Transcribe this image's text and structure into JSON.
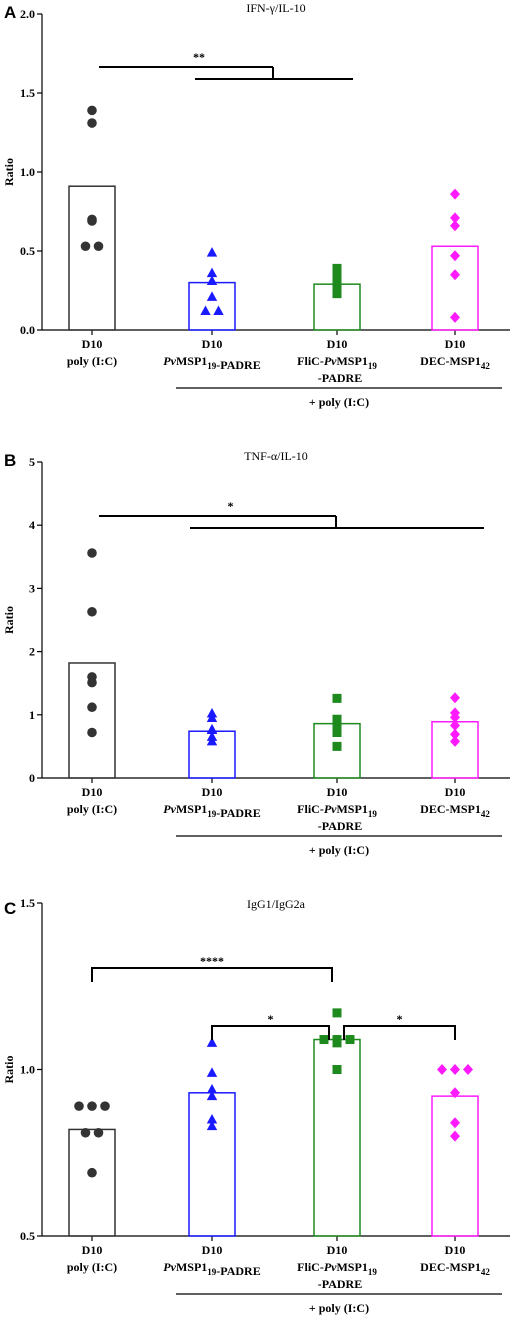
{
  "chart_data": [
    {
      "type": "bar",
      "panel": "A",
      "title": "IFN-γ/IL-10",
      "ylabel": "Ratio",
      "ylim": [
        0,
        2.0
      ],
      "yticks": [
        "0.0",
        "0.5",
        "1.0",
        "1.5",
        "2.0"
      ],
      "categories": [
        {
          "line1": "D10",
          "line2": "poly (I:C)"
        },
        {
          "line1": "D10",
          "line2": [
            {
              "t": "Pv",
              "i": true
            },
            {
              "t": "MSP1"
            },
            {
              "t": "19",
              "sub": true
            },
            {
              "t": "-PADRE"
            }
          ]
        },
        {
          "line1": "D10",
          "line2": [
            {
              "t": "FliC-"
            },
            {
              "t": "Pv",
              "i": true
            },
            {
              "t": "MSP1"
            },
            {
              "t": "19",
              "sub": true
            }
          ],
          "line3": "-PADRE"
        },
        {
          "line1": "D10",
          "line2": [
            {
              "t": "DEC-MSP1"
            },
            {
              "t": "42",
              "sub": true
            }
          ]
        }
      ],
      "group_label": "+ poly (I:C)",
      "colors": [
        "#333333",
        "#1a1aff",
        "#1e8a1e",
        "#ff1aff"
      ],
      "markers": [
        "circle",
        "triangle",
        "square",
        "diamond"
      ],
      "values": [
        0.91,
        0.3,
        0.29,
        0.53
      ],
      "points": [
        [
          1.39,
          1.31,
          0.7,
          0.69,
          0.53,
          0.53
        ],
        [
          0.49,
          0.36,
          0.31,
          0.21,
          0.12,
          0.12
        ],
        [
          0.39,
          0.38,
          0.33,
          0.32,
          0.26,
          0.23
        ],
        [
          0.86,
          0.71,
          0.66,
          0.47,
          0.35,
          0.08
        ]
      ],
      "significance": [
        {
          "label": "**",
          "from": [
            0
          ],
          "to": [
            1,
            2,
            3
          ]
        }
      ]
    },
    {
      "type": "bar",
      "panel": "B",
      "title": "TNF-α/IL-10",
      "ylabel": "Ratio",
      "ylim": [
        0,
        5
      ],
      "yticks": [
        "0",
        "1",
        "2",
        "3",
        "4",
        "5"
      ],
      "categories": [
        {
          "line1": "D10",
          "line2": "poly (I:C)"
        },
        {
          "line1": "D10",
          "line2": [
            {
              "t": "Pv",
              "i": true
            },
            {
              "t": "MSP1"
            },
            {
              "t": "19",
              "sub": true
            },
            {
              "t": "-PADRE"
            }
          ]
        },
        {
          "line1": "D10",
          "line2": [
            {
              "t": "FliC-"
            },
            {
              "t": "Pv",
              "i": true
            },
            {
              "t": "MSP1"
            },
            {
              "t": "19",
              "sub": true
            }
          ],
          "line3": "-PADRE"
        },
        {
          "line1": "D10",
          "line2": [
            {
              "t": "DEC-MSP1"
            },
            {
              "t": "42",
              "sub": true
            }
          ]
        }
      ],
      "group_label": "+ poly (I:C)",
      "colors": [
        "#333333",
        "#1a1aff",
        "#1e8a1e",
        "#ff1aff"
      ],
      "markers": [
        "circle",
        "triangle",
        "square",
        "diamond"
      ],
      "values": [
        1.82,
        0.74,
        0.86,
        0.89
      ],
      "points": [
        [
          3.56,
          2.63,
          1.6,
          1.51,
          1.12,
          0.72
        ],
        [
          1.02,
          0.95,
          0.77,
          0.76,
          0.65,
          0.58
        ],
        [
          1.26,
          0.93,
          0.92,
          0.83,
          0.72,
          0.5
        ],
        [
          1.27,
          1.03,
          0.96,
          0.83,
          0.69,
          0.58
        ]
      ],
      "significance": [
        {
          "label": "*",
          "from": [
            0
          ],
          "to": [
            1,
            2,
            3
          ]
        }
      ]
    },
    {
      "type": "bar",
      "panel": "C",
      "title": "IgG1/IgG2a",
      "ylabel": "Ratio",
      "ylim": [
        0.5,
        1.5
      ],
      "yticks": [
        "0.5",
        "1.0",
        "1.5"
      ],
      "categories": [
        {
          "line1": "D10",
          "line2": "poly (I:C)"
        },
        {
          "line1": "D10",
          "line2": [
            {
              "t": "Pv",
              "i": true
            },
            {
              "t": "MSP1"
            },
            {
              "t": "19",
              "sub": true
            },
            {
              "t": "-PADRE"
            }
          ]
        },
        {
          "line1": "D10",
          "line2": [
            {
              "t": "FliC-"
            },
            {
              "t": "Pv",
              "i": true
            },
            {
              "t": "MSP1"
            },
            {
              "t": "19",
              "sub": true
            }
          ],
          "line3": "-PADRE"
        },
        {
          "line1": "D10",
          "line2": [
            {
              "t": "DEC-MSP1"
            },
            {
              "t": "42",
              "sub": true
            }
          ]
        }
      ],
      "group_label": "+ poly (I:C)",
      "colors": [
        "#333333",
        "#1a1aff",
        "#1e8a1e",
        "#ff1aff"
      ],
      "markers": [
        "circle",
        "triangle",
        "square",
        "diamond"
      ],
      "values": [
        0.82,
        0.93,
        1.09,
        0.92
      ],
      "points": [
        [
          0.89,
          0.89,
          0.89,
          0.81,
          0.81,
          0.69
        ],
        [
          1.08,
          0.99,
          0.94,
          0.92,
          0.85,
          0.83
        ],
        [
          1.17,
          1.09,
          1.09,
          1.09,
          1.08,
          1.0
        ],
        [
          1.0,
          1.0,
          1.0,
          0.93,
          0.84,
          0.8
        ]
      ],
      "significance": [
        {
          "label": "****",
          "from": [
            0
          ],
          "to": [
            2
          ]
        },
        {
          "label": "*",
          "from": [
            1
          ],
          "to": [
            2
          ]
        },
        {
          "label": "*",
          "from": [
            2
          ],
          "to": [
            3
          ]
        }
      ]
    }
  ]
}
